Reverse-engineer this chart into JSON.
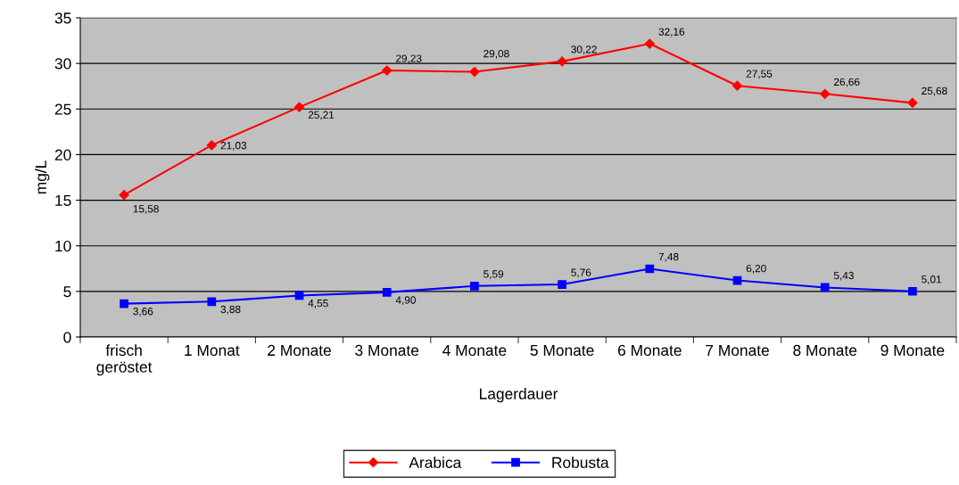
{
  "chart_data": {
    "type": "line",
    "xlabel": "Lagerdauer",
    "ylabel": "mg/L",
    "categories": [
      "frisch\ngeröstet",
      "1 Monat",
      "2 Monate",
      "3 Monate",
      "4 Monate",
      "5 Monate",
      "6 Monate",
      "7 Monate",
      "8 Monate",
      "9 Monate"
    ],
    "series": [
      {
        "name": "Arabica",
        "color": "#ff0000",
        "marker": "diamond",
        "values": [
          15.58,
          21.03,
          25.21,
          29.23,
          29.08,
          30.22,
          32.16,
          27.55,
          26.66,
          25.68
        ],
        "value_labels": [
          "15,58",
          "21,03",
          "25,21",
          "29,23",
          "29,08",
          "30,22",
          "32,16",
          "27,55",
          "26,66",
          "25,68"
        ]
      },
      {
        "name": "Robusta",
        "color": "#0000ff",
        "marker": "square",
        "values": [
          3.66,
          3.88,
          4.55,
          4.9,
          5.59,
          5.76,
          7.48,
          6.2,
          5.43,
          5.01
        ],
        "value_labels": [
          "3,66",
          "3,88",
          "4,55",
          "4,90",
          "5,59",
          "5,76",
          "7,48",
          "6,20",
          "5,43",
          "5,01"
        ]
      }
    ],
    "ylim": [
      0,
      35
    ],
    "yticks": [
      0,
      5,
      10,
      15,
      20,
      25,
      30,
      35
    ],
    "grid": "y",
    "legend": "bottom"
  }
}
